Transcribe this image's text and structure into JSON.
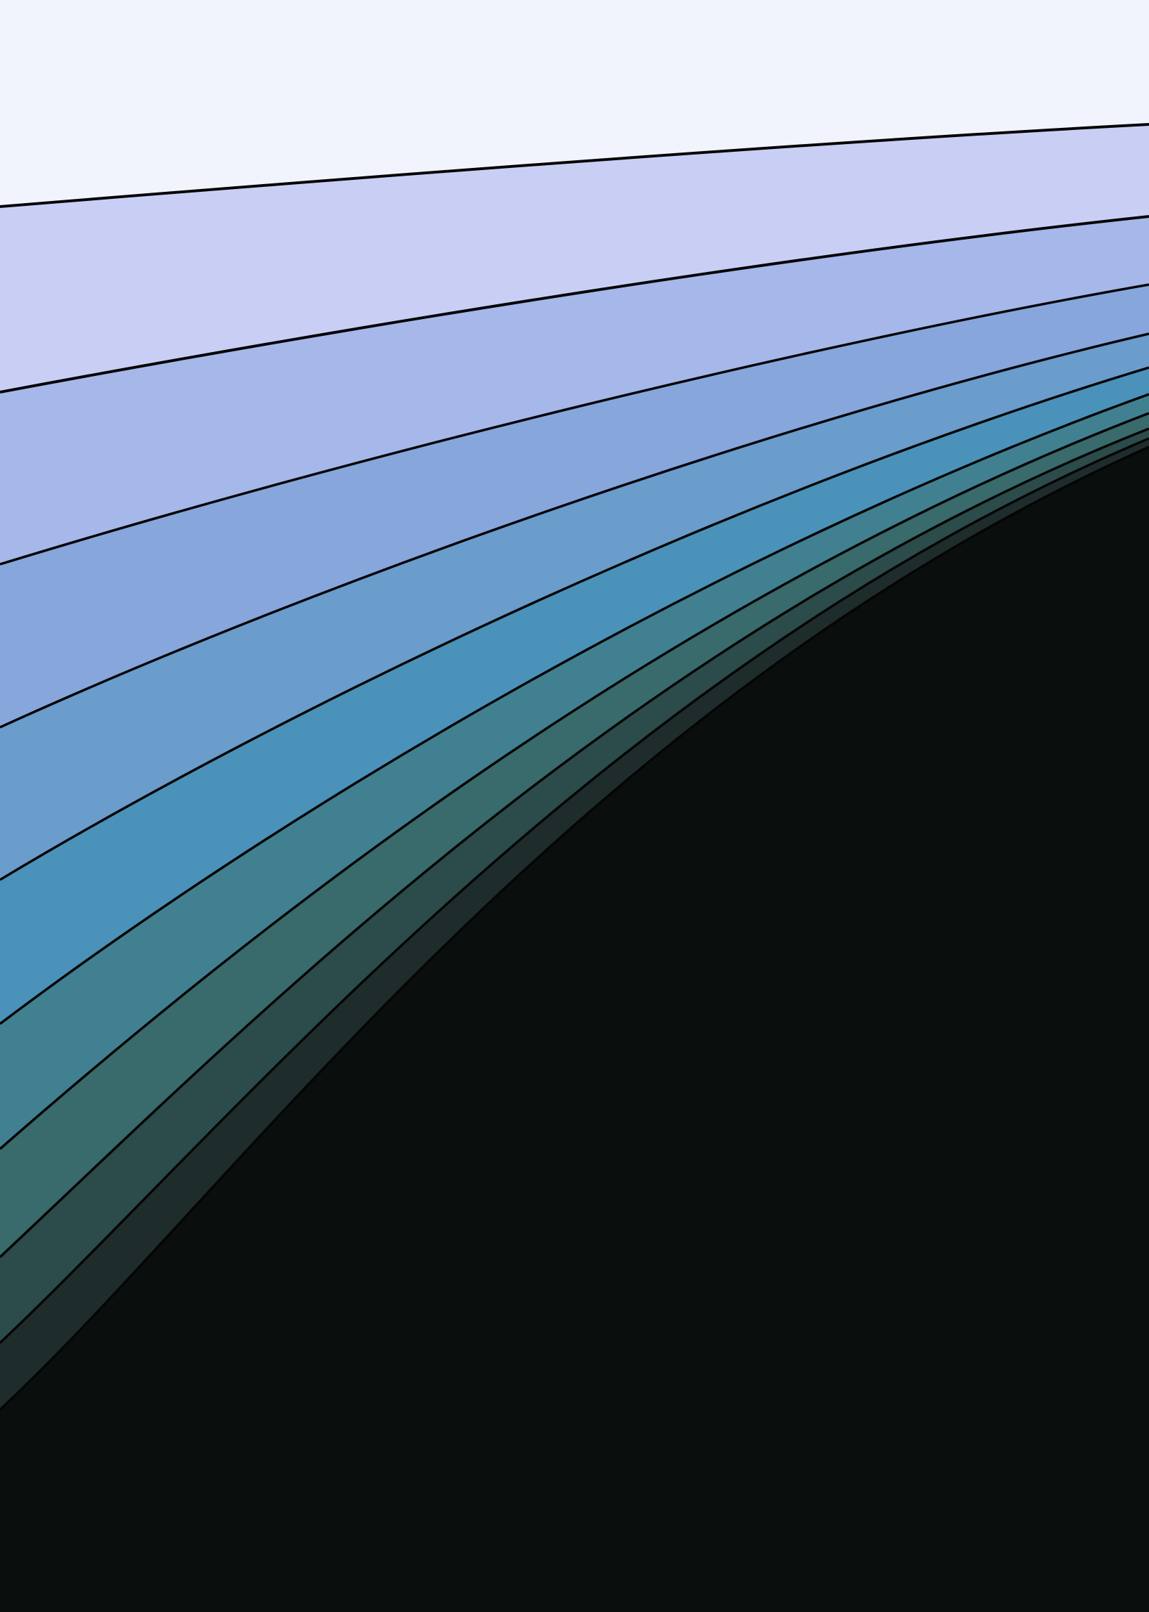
{
  "artwork": {
    "band_colors": [
      "#f2f4fd",
      "#c9cff4",
      "#a6b7ea",
      "#87a6dc",
      "#6a9ccc",
      "#4a92b9",
      "#418091",
      "#396a6c",
      "#2c4b4b",
      "#1e2d2c",
      "#0a0e0d"
    ],
    "outline_color": "#050505"
  }
}
